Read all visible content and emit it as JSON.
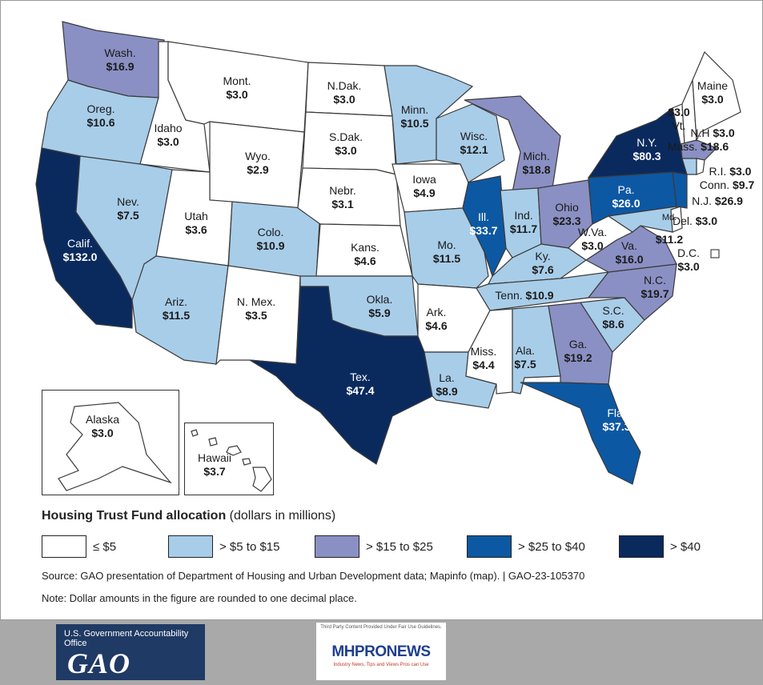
{
  "colors": {
    "le5": "#ffffff",
    "gt5to15": "#a8cde9",
    "gt15to25": "#8a90c3",
    "gt25to40": "#0d58a3",
    "gt40": "#0a2a5e"
  },
  "legend": {
    "title": "Housing Trust Fund allocation",
    "units": "(dollars in millions)",
    "items": [
      {
        "label": "≤ $5",
        "color": "#ffffff"
      },
      {
        "label": "> $5 to $15",
        "color": "#a8cde9"
      },
      {
        "label": "> $15 to $25",
        "color": "#8a90c3"
      },
      {
        "label": "> $25 to $40",
        "color": "#0d58a3"
      },
      {
        "label": "> $40",
        "color": "#0a2a5e"
      }
    ]
  },
  "states": [
    {
      "abbr": "Wash.",
      "value": "$16.9"
    },
    {
      "abbr": "Oreg.",
      "value": "$10.6"
    },
    {
      "abbr": "Calif.",
      "value": "$132.0"
    },
    {
      "abbr": "Idaho",
      "value": "$3.0"
    },
    {
      "abbr": "Nev.",
      "value": "$7.5"
    },
    {
      "abbr": "Mont.",
      "value": "$3.0"
    },
    {
      "abbr": "Wyo.",
      "value": "$2.9"
    },
    {
      "abbr": "Utah",
      "value": "$3.6"
    },
    {
      "abbr": "Colo.",
      "value": "$10.9"
    },
    {
      "abbr": "Ariz.",
      "value": "$11.5"
    },
    {
      "abbr": "N. Mex.",
      "value": "$3.5"
    },
    {
      "abbr": "N.Dak.",
      "value": "$3.0"
    },
    {
      "abbr": "S.Dak.",
      "value": "$3.0"
    },
    {
      "abbr": "Nebr.",
      "value": "$3.1"
    },
    {
      "abbr": "Kans.",
      "value": "$4.6"
    },
    {
      "abbr": "Okla.",
      "value": "$5.9"
    },
    {
      "abbr": "Tex.",
      "value": "$47.4"
    },
    {
      "abbr": "Minn.",
      "value": "$10.5"
    },
    {
      "abbr": "Iowa",
      "value": "$4.9"
    },
    {
      "abbr": "Mo.",
      "value": "$11.5"
    },
    {
      "abbr": "Ark.",
      "value": "$4.6"
    },
    {
      "abbr": "La.",
      "value": "$8.9"
    },
    {
      "abbr": "Wisc.",
      "value": "$12.1"
    },
    {
      "abbr": "Ill.",
      "value": "$33.7"
    },
    {
      "abbr": "Mich.",
      "value": "$18.8"
    },
    {
      "abbr": "Ind.",
      "value": "$11.7"
    },
    {
      "abbr": "Ohio",
      "value": "$23.3"
    },
    {
      "abbr": "Ky.",
      "value": "$7.6"
    },
    {
      "abbr": "Tenn.",
      "value": "$10.9"
    },
    {
      "abbr": "Miss.",
      "value": "$4.4"
    },
    {
      "abbr": "Ala.",
      "value": "$7.5"
    },
    {
      "abbr": "Ga.",
      "value": "$19.2"
    },
    {
      "abbr": "Fla.",
      "value": "$37.3"
    },
    {
      "abbr": "S.C.",
      "value": "$8.6"
    },
    {
      "abbr": "N.C.",
      "value": "$19.7"
    },
    {
      "abbr": "Va.",
      "value": "$16.0"
    },
    {
      "abbr": "W.Va.",
      "value": "$3.0"
    },
    {
      "abbr": "Pa.",
      "value": "$26.0"
    },
    {
      "abbr": "N.Y.",
      "value": "$80.3"
    },
    {
      "abbr": "Maine",
      "value": "$3.0"
    },
    {
      "abbr": "Alaska",
      "value": "$3.0"
    },
    {
      "abbr": "Hawaii",
      "value": "$3.7"
    }
  ],
  "small_states": [
    {
      "abbr": "Vt.",
      "value": "$3.0"
    },
    {
      "abbr": "N.H",
      "value": "$3.0"
    },
    {
      "abbr": "Mass.",
      "value": "$18.6"
    },
    {
      "abbr": "R.I.",
      "value": "$3.0"
    },
    {
      "abbr": "Conn.",
      "value": "$9.7"
    },
    {
      "abbr": "N.J.",
      "value": "$26.9"
    },
    {
      "abbr": "Del.",
      "value": "$3.0"
    },
    {
      "abbr": "Md.",
      "value": "$11.2"
    },
    {
      "abbr": "D.C.",
      "value": "$3.0"
    }
  ],
  "source": "Source: GAO presentation of Department of Housing and Urban Development data; Mapinfo (map).  |  GAO-23-105370",
  "note": "Note: Dollar amounts in the figure are rounded to one decimal place.",
  "gao_logo": {
    "org": "U.S. Government Accountability Office",
    "abbr": "GAO"
  },
  "mh_logo": {
    "top": "Third Party Content Provided Under Fair Use Guidelines.",
    "name": "MHPRONEWS",
    "tag": "Industry News, Tips and Views Pros can Use"
  }
}
